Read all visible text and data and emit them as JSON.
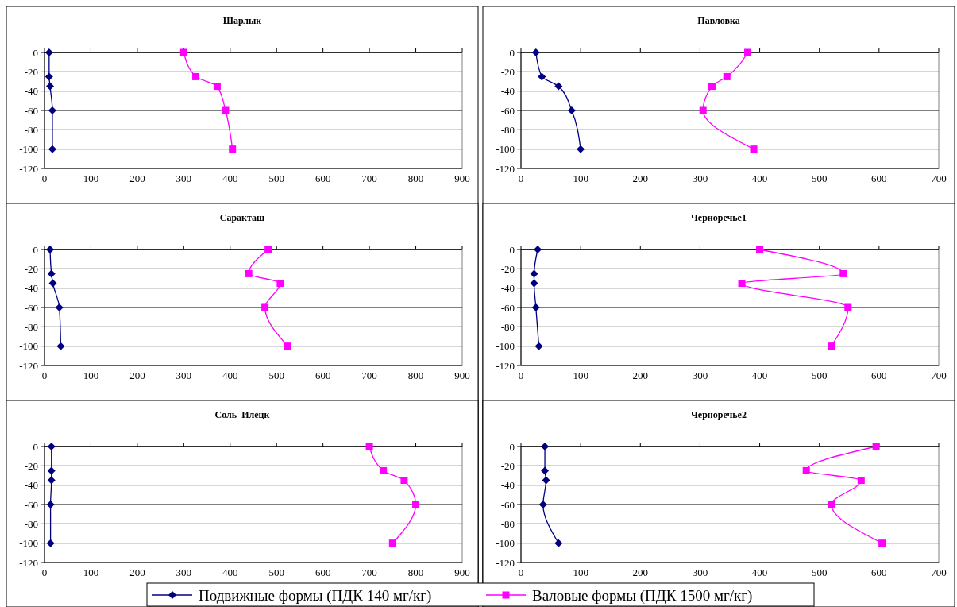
{
  "chart_data": [
    {
      "type": "line",
      "title": "Шарлык",
      "xlim": [
        0,
        900
      ],
      "xticks": [
        0,
        100,
        200,
        300,
        400,
        500,
        600,
        700,
        800,
        900
      ],
      "ylim": [
        -120,
        0
      ],
      "yticks": [
        0,
        -20,
        -40,
        -60,
        -80,
        -100,
        -120
      ],
      "grid": "y",
      "legend": "bottom",
      "series": [
        {
          "name": "Подвижные формы (ПДК 140 мг/кг)",
          "color": "#000080",
          "marker": "diamond",
          "x": [
            10,
            10,
            12,
            17,
            17
          ],
          "values": [
            0,
            -25,
            -35,
            -60,
            -100
          ]
        },
        {
          "name": "Валовые формы (ПДК 1500 мг/кг)",
          "color": "#ff00ff",
          "marker": "square",
          "x": [
            300,
            326,
            372,
            390,
            405
          ],
          "values": [
            0,
            -25,
            -35,
            -60,
            -100
          ]
        }
      ]
    },
    {
      "type": "line",
      "title": "Павловка",
      "xlim": [
        0,
        700
      ],
      "xticks": [
        0,
        100,
        200,
        300,
        400,
        500,
        600,
        700
      ],
      "ylim": [
        -120,
        0
      ],
      "yticks": [
        0,
        -20,
        -40,
        -60,
        -80,
        -100,
        -120
      ],
      "grid": "y",
      "series": [
        {
          "color": "#000080",
          "marker": "diamond",
          "x": [
            25,
            35,
            63,
            85,
            100
          ],
          "values": [
            0,
            -25,
            -35,
            -60,
            -100
          ]
        },
        {
          "color": "#ff00ff",
          "marker": "square",
          "x": [
            380,
            345,
            320,
            305,
            390
          ],
          "values": [
            0,
            -25,
            -35,
            -60,
            -100
          ]
        }
      ]
    },
    {
      "type": "line",
      "title": "Саракташ",
      "xlim": [
        0,
        900
      ],
      "xticks": [
        0,
        100,
        200,
        300,
        400,
        500,
        600,
        700,
        800,
        900
      ],
      "ylim": [
        -120,
        0
      ],
      "yticks": [
        0,
        -20,
        -40,
        -60,
        -80,
        -100,
        -120
      ],
      "grid": "y",
      "series": [
        {
          "color": "#000080",
          "marker": "diamond",
          "x": [
            12,
            15,
            18,
            32,
            35
          ],
          "values": [
            0,
            -25,
            -35,
            -60,
            -100
          ]
        },
        {
          "color": "#ff00ff",
          "marker": "square",
          "x": [
            482,
            440,
            508,
            475,
            524
          ],
          "values": [
            0,
            -25,
            -35,
            -60,
            -100
          ]
        }
      ]
    },
    {
      "type": "line",
      "title": "Черноречье1",
      "xlim": [
        0,
        700
      ],
      "xticks": [
        0,
        100,
        200,
        300,
        400,
        500,
        600,
        700
      ],
      "ylim": [
        -120,
        0
      ],
      "yticks": [
        0,
        -20,
        -40,
        -60,
        -80,
        -100,
        -120
      ],
      "grid": "y",
      "series": [
        {
          "color": "#000080",
          "marker": "diamond",
          "x": [
            28,
            22,
            22,
            25,
            30
          ],
          "values": [
            0,
            -25,
            -35,
            -60,
            -100
          ]
        },
        {
          "color": "#ff00ff",
          "marker": "square",
          "x": [
            400,
            540,
            370,
            548,
            520
          ],
          "values": [
            0,
            -25,
            -35,
            -60,
            -100
          ]
        }
      ]
    },
    {
      "type": "line",
      "title": "Соль_Илецк",
      "xlim": [
        0,
        900
      ],
      "xticks": [
        0,
        100,
        200,
        300,
        400,
        500,
        600,
        700,
        800,
        900
      ],
      "ylim": [
        -120,
        0
      ],
      "yticks": [
        0,
        -20,
        -40,
        -60,
        -80,
        -100,
        -120
      ],
      "grid": "y",
      "series": [
        {
          "color": "#000080",
          "marker": "diamond",
          "x": [
            15,
            15,
            15,
            13,
            13
          ],
          "values": [
            0,
            -25,
            -35,
            -60,
            -100
          ]
        },
        {
          "color": "#ff00ff",
          "marker": "square",
          "x": [
            700,
            730,
            775,
            800,
            750
          ],
          "values": [
            0,
            -25,
            -35,
            -60,
            -100
          ]
        }
      ]
    },
    {
      "type": "line",
      "title": "Черноречье2",
      "xlim": [
        0,
        700
      ],
      "xticks": [
        0,
        100,
        200,
        300,
        400,
        500,
        600,
        700
      ],
      "ylim": [
        -120,
        0
      ],
      "yticks": [
        0,
        -20,
        -40,
        -60,
        -80,
        -100,
        -120
      ],
      "grid": "y",
      "series": [
        {
          "color": "#000080",
          "marker": "diamond",
          "x": [
            40,
            40,
            42,
            37,
            63
          ],
          "values": [
            0,
            -25,
            -35,
            -60,
            -100
          ]
        },
        {
          "color": "#ff00ff",
          "marker": "square",
          "x": [
            595,
            478,
            570,
            520,
            605
          ],
          "values": [
            0,
            -25,
            -35,
            -60,
            -100
          ]
        }
      ]
    }
  ]
}
